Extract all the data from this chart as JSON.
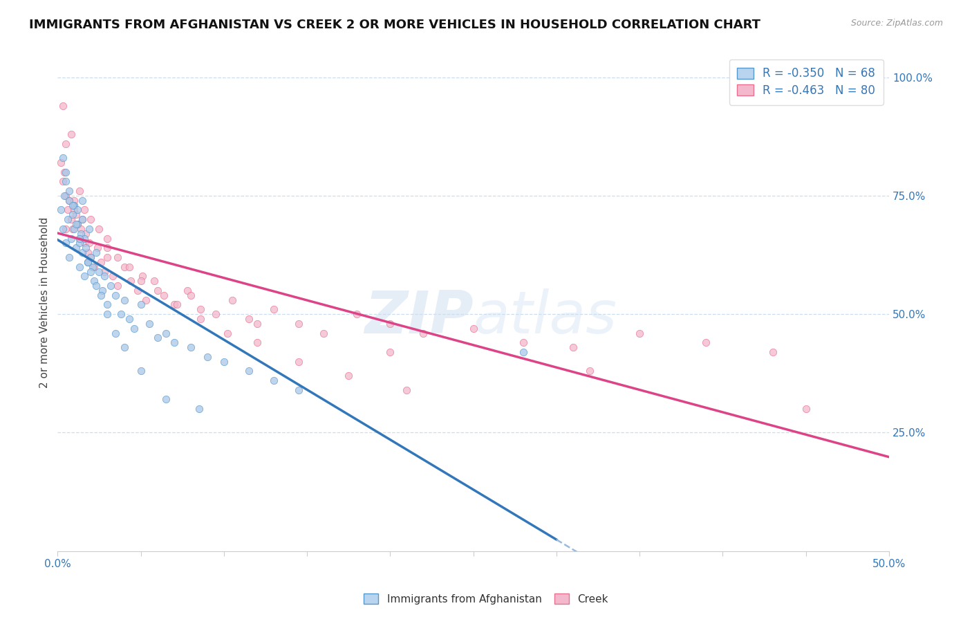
{
  "title": "IMMIGRANTS FROM AFGHANISTAN VS CREEK 2 OR MORE VEHICLES IN HOUSEHOLD CORRELATION CHART",
  "source_text": "Source: ZipAtlas.com",
  "ylabel": "2 or more Vehicles in Household",
  "xlim": [
    0.0,
    0.5
  ],
  "ylim": [
    0.0,
    1.05
  ],
  "yticks_right": [
    0.25,
    0.5,
    0.75,
    1.0
  ],
  "ytick_right_labels": [
    "25.0%",
    "50.0%",
    "75.0%",
    "100.0%"
  ],
  "blue_face": "#a8c8e8",
  "blue_edge": "#5599cc",
  "pink_face": "#f4b8cc",
  "pink_edge": "#e87090",
  "blue_line_color": "#3377bb",
  "pink_line_color": "#dd4488",
  "dashed_color": "#99bbdd",
  "watermark": "ZIPatlas",
  "title_fontsize": 13,
  "legend_fontsize": 12,
  "tick_fontsize": 11,
  "ylabel_fontsize": 11,
  "blue_line_x_end": 0.3,
  "blue_scatter_x": [
    0.002,
    0.003,
    0.004,
    0.005,
    0.005,
    0.006,
    0.007,
    0.007,
    0.008,
    0.009,
    0.01,
    0.01,
    0.011,
    0.012,
    0.012,
    0.013,
    0.013,
    0.014,
    0.015,
    0.015,
    0.016,
    0.016,
    0.017,
    0.018,
    0.019,
    0.02,
    0.021,
    0.022,
    0.023,
    0.025,
    0.027,
    0.028,
    0.03,
    0.032,
    0.035,
    0.038,
    0.04,
    0.043,
    0.046,
    0.05,
    0.055,
    0.06,
    0.065,
    0.07,
    0.08,
    0.09,
    0.1,
    0.115,
    0.13,
    0.145,
    0.003,
    0.005,
    0.007,
    0.009,
    0.011,
    0.013,
    0.015,
    0.018,
    0.02,
    0.023,
    0.026,
    0.03,
    0.035,
    0.04,
    0.05,
    0.065,
    0.085,
    0.28
  ],
  "blue_scatter_y": [
    0.72,
    0.68,
    0.75,
    0.8,
    0.65,
    0.7,
    0.74,
    0.62,
    0.66,
    0.71,
    0.73,
    0.68,
    0.64,
    0.69,
    0.72,
    0.65,
    0.6,
    0.67,
    0.7,
    0.63,
    0.66,
    0.58,
    0.64,
    0.61,
    0.68,
    0.62,
    0.6,
    0.57,
    0.63,
    0.59,
    0.55,
    0.58,
    0.52,
    0.56,
    0.54,
    0.5,
    0.53,
    0.49,
    0.47,
    0.52,
    0.48,
    0.45,
    0.46,
    0.44,
    0.43,
    0.41,
    0.4,
    0.38,
    0.36,
    0.34,
    0.83,
    0.78,
    0.76,
    0.73,
    0.69,
    0.66,
    0.74,
    0.61,
    0.59,
    0.56,
    0.54,
    0.5,
    0.46,
    0.43,
    0.38,
    0.32,
    0.3,
    0.42
  ],
  "pink_scatter_x": [
    0.002,
    0.003,
    0.004,
    0.005,
    0.006,
    0.007,
    0.008,
    0.009,
    0.01,
    0.011,
    0.012,
    0.013,
    0.014,
    0.015,
    0.016,
    0.017,
    0.018,
    0.019,
    0.02,
    0.022,
    0.024,
    0.026,
    0.028,
    0.03,
    0.033,
    0.036,
    0.04,
    0.044,
    0.048,
    0.053,
    0.058,
    0.064,
    0.07,
    0.078,
    0.086,
    0.095,
    0.105,
    0.115,
    0.13,
    0.145,
    0.16,
    0.18,
    0.2,
    0.22,
    0.25,
    0.28,
    0.31,
    0.35,
    0.39,
    0.43,
    0.003,
    0.005,
    0.008,
    0.01,
    0.013,
    0.016,
    0.02,
    0.025,
    0.03,
    0.036,
    0.043,
    0.051,
    0.06,
    0.072,
    0.086,
    0.102,
    0.12,
    0.145,
    0.175,
    0.21,
    0.005,
    0.01,
    0.018,
    0.03,
    0.05,
    0.08,
    0.12,
    0.2,
    0.32,
    0.45
  ],
  "pink_scatter_y": [
    0.82,
    0.78,
    0.8,
    0.75,
    0.72,
    0.74,
    0.7,
    0.68,
    0.73,
    0.71,
    0.69,
    0.66,
    0.68,
    0.7,
    0.65,
    0.67,
    0.63,
    0.65,
    0.62,
    0.6,
    0.64,
    0.61,
    0.59,
    0.62,
    0.58,
    0.56,
    0.6,
    0.57,
    0.55,
    0.53,
    0.57,
    0.54,
    0.52,
    0.55,
    0.51,
    0.5,
    0.53,
    0.49,
    0.51,
    0.48,
    0.46,
    0.5,
    0.48,
    0.46,
    0.47,
    0.44,
    0.43,
    0.46,
    0.44,
    0.42,
    0.94,
    0.86,
    0.88,
    0.74,
    0.76,
    0.72,
    0.7,
    0.68,
    0.64,
    0.62,
    0.6,
    0.58,
    0.55,
    0.52,
    0.49,
    0.46,
    0.44,
    0.4,
    0.37,
    0.34,
    0.68,
    0.72,
    0.61,
    0.66,
    0.57,
    0.54,
    0.48,
    0.42,
    0.38,
    0.3
  ]
}
